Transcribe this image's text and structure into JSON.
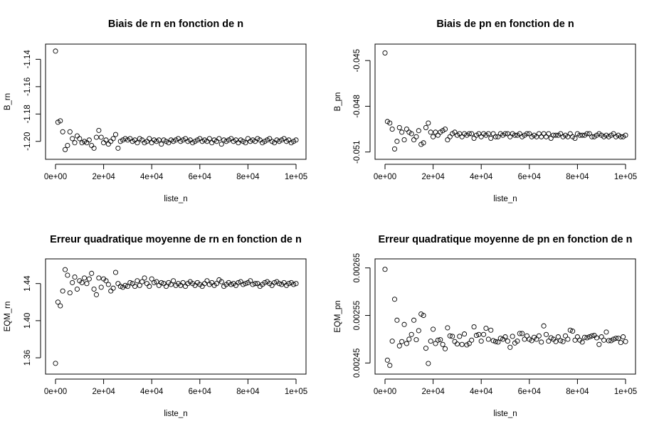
{
  "chart_data": [
    {
      "type": "scatter",
      "title": "Biais de rn en fonction de n",
      "xlabel": "liste_n",
      "ylabel": "B_rn",
      "xlim": [
        0,
        100000
      ],
      "ylim": [
        -1.21,
        -1.132
      ],
      "x_ticks": [
        "0e+00",
        "2e+04",
        "4e+04",
        "6e+04",
        "8e+04",
        "1e+05"
      ],
      "y_ticks": [
        "-1.20",
        "-1.18",
        "-1.16",
        "-1.14"
      ],
      "grid": false,
      "series": [
        {
          "x": [
            0,
            1000,
            2000,
            3000,
            4000,
            5000,
            6000,
            7000,
            8000,
            9000,
            10000,
            11000,
            12000,
            13000,
            14000,
            15000,
            16000,
            17000,
            18000,
            19000,
            20000,
            21000,
            22000,
            23000,
            24000,
            25000,
            26000,
            27000,
            28000,
            29000,
            30000,
            31000,
            32000,
            33000,
            34000,
            35000,
            36000,
            37000,
            38000,
            39000,
            40000,
            41000,
            42000,
            43000,
            44000,
            45000,
            46000,
            47000,
            48000,
            49000,
            50000,
            51000,
            52000,
            53000,
            54000,
            55000,
            56000,
            57000,
            58000,
            59000,
            60000,
            61000,
            62000,
            63000,
            64000,
            65000,
            66000,
            67000,
            68000,
            69000,
            70000,
            71000,
            72000,
            73000,
            74000,
            75000,
            76000,
            77000,
            78000,
            79000,
            80000,
            81000,
            82000,
            83000,
            84000,
            85000,
            86000,
            87000,
            88000,
            89000,
            90000,
            91000,
            92000,
            93000,
            94000,
            95000,
            96000,
            97000,
            98000,
            99000,
            100000
          ],
          "y": [
            -1.134,
            -1.186,
            -1.185,
            -1.193,
            -1.206,
            -1.203,
            -1.193,
            -1.198,
            -1.201,
            -1.196,
            -1.198,
            -1.201,
            -1.2,
            -1.201,
            -1.199,
            -1.203,
            -1.205,
            -1.197,
            -1.192,
            -1.197,
            -1.201,
            -1.199,
            -1.202,
            -1.2,
            -1.198,
            -1.195,
            -1.205,
            -1.2,
            -1.199,
            -1.198,
            -1.199,
            -1.198,
            -1.2,
            -1.199,
            -1.201,
            -1.198,
            -1.199,
            -1.201,
            -1.2,
            -1.198,
            -1.201,
            -1.199,
            -1.2,
            -1.199,
            -1.202,
            -1.199,
            -1.2,
            -1.201,
            -1.199,
            -1.2,
            -1.199,
            -1.198,
            -1.2,
            -1.199,
            -1.198,
            -1.2,
            -1.199,
            -1.201,
            -1.2,
            -1.199,
            -1.198,
            -1.2,
            -1.199,
            -1.2,
            -1.198,
            -1.201,
            -1.199,
            -1.2,
            -1.198,
            -1.202,
            -1.199,
            -1.2,
            -1.199,
            -1.198,
            -1.2,
            -1.199,
            -1.201,
            -1.199,
            -1.2,
            -1.201,
            -1.198,
            -1.2,
            -1.199,
            -1.2,
            -1.198,
            -1.199,
            -1.201,
            -1.2,
            -1.199,
            -1.198,
            -1.2,
            -1.201,
            -1.199,
            -1.2,
            -1.199,
            -1.198,
            -1.2,
            -1.199,
            -1.201,
            -1.2,
            -1.199
          ]
        }
      ]
    },
    {
      "type": "scatter",
      "title": "Biais de pn en fonction de n",
      "xlabel": "liste_n",
      "ylabel": "B_pn",
      "xlim": [
        0,
        100000
      ],
      "ylim": [
        -0.0512,
        -0.0442
      ],
      "x_ticks": [
        "0e+00",
        "2e+04",
        "4e+04",
        "6e+04",
        "8e+04",
        "1e+05"
      ],
      "y_ticks": [
        "-0.051",
        "-0.048",
        "-0.045"
      ],
      "grid": false,
      "series": [
        {
          "x": [
            0,
            1000,
            2000,
            3000,
            4000,
            5000,
            6000,
            7000,
            8000,
            9000,
            10000,
            11000,
            12000,
            13000,
            14000,
            15000,
            16000,
            17000,
            18000,
            19000,
            20000,
            21000,
            22000,
            23000,
            24000,
            25000,
            26000,
            27000,
            28000,
            29000,
            30000,
            31000,
            32000,
            33000,
            34000,
            35000,
            36000,
            37000,
            38000,
            39000,
            40000,
            41000,
            42000,
            43000,
            44000,
            45000,
            46000,
            47000,
            48000,
            49000,
            50000,
            51000,
            52000,
            53000,
            54000,
            55000,
            56000,
            57000,
            58000,
            59000,
            60000,
            61000,
            62000,
            63000,
            64000,
            65000,
            66000,
            67000,
            68000,
            69000,
            70000,
            71000,
            72000,
            73000,
            74000,
            75000,
            76000,
            77000,
            78000,
            79000,
            80000,
            81000,
            82000,
            83000,
            84000,
            85000,
            86000,
            87000,
            88000,
            89000,
            90000,
            91000,
            92000,
            93000,
            94000,
            95000,
            96000,
            97000,
            98000,
            99000,
            100000
          ],
          "y": [
            -0.0445,
            -0.049,
            -0.0491,
            -0.0495,
            -0.0508,
            -0.0503,
            -0.0494,
            -0.0497,
            -0.0502,
            -0.0495,
            -0.0497,
            -0.0498,
            -0.0502,
            -0.05,
            -0.0496,
            -0.0505,
            -0.0504,
            -0.0494,
            -0.0491,
            -0.0497,
            -0.05,
            -0.0497,
            -0.0499,
            -0.0497,
            -0.0496,
            -0.0495,
            -0.0502,
            -0.05,
            -0.0498,
            -0.0497,
            -0.0499,
            -0.0498,
            -0.05,
            -0.0498,
            -0.0499,
            -0.0498,
            -0.0498,
            -0.0501,
            -0.0499,
            -0.0498,
            -0.05,
            -0.0498,
            -0.0499,
            -0.0498,
            -0.0501,
            -0.0498,
            -0.05,
            -0.05,
            -0.0498,
            -0.0499,
            -0.0498,
            -0.0498,
            -0.05,
            -0.0498,
            -0.0499,
            -0.0499,
            -0.0498,
            -0.05,
            -0.0499,
            -0.0498,
            -0.0498,
            -0.05,
            -0.0499,
            -0.05,
            -0.0498,
            -0.05,
            -0.0498,
            -0.05,
            -0.0498,
            -0.0501,
            -0.0499,
            -0.0499,
            -0.0499,
            -0.0498,
            -0.05,
            -0.0499,
            -0.05,
            -0.0498,
            -0.05,
            -0.0501,
            -0.0498,
            -0.0499,
            -0.0499,
            -0.0499,
            -0.0498,
            -0.0498,
            -0.05,
            -0.05,
            -0.0499,
            -0.0498,
            -0.0499,
            -0.05,
            -0.0499,
            -0.05,
            -0.0499,
            -0.0498,
            -0.05,
            -0.0499,
            -0.05,
            -0.05,
            -0.0499
          ]
        }
      ]
    },
    {
      "type": "scatter",
      "title": "Erreur quadratique moyenne de rn en fonction de n",
      "xlabel": "liste_n",
      "ylabel": "EQM_rn",
      "xlim": [
        0,
        100000
      ],
      "ylim": [
        1.347,
        1.462
      ],
      "x_ticks": [
        "0e+00",
        "2e+04",
        "4e+04",
        "6e+04",
        "8e+04",
        "1e+05"
      ],
      "y_ticks": [
        "1.36",
        "1.40",
        "1.44"
      ],
      "grid": false,
      "series": [
        {
          "x": [
            0,
            1000,
            2000,
            3000,
            4000,
            5000,
            6000,
            7000,
            8000,
            9000,
            10000,
            11000,
            12000,
            13000,
            14000,
            15000,
            16000,
            17000,
            18000,
            19000,
            20000,
            21000,
            22000,
            23000,
            24000,
            25000,
            26000,
            27000,
            28000,
            29000,
            30000,
            31000,
            32000,
            33000,
            34000,
            35000,
            36000,
            37000,
            38000,
            39000,
            40000,
            41000,
            42000,
            43000,
            44000,
            45000,
            46000,
            47000,
            48000,
            49000,
            50000,
            51000,
            52000,
            53000,
            54000,
            55000,
            56000,
            57000,
            58000,
            59000,
            60000,
            61000,
            62000,
            63000,
            64000,
            65000,
            66000,
            67000,
            68000,
            69000,
            70000,
            71000,
            72000,
            73000,
            74000,
            75000,
            76000,
            77000,
            78000,
            79000,
            80000,
            81000,
            82000,
            83000,
            84000,
            85000,
            86000,
            87000,
            88000,
            89000,
            90000,
            91000,
            92000,
            93000,
            94000,
            95000,
            96000,
            97000,
            98000,
            99000,
            100000
          ],
          "y": [
            1.354,
            1.42,
            1.416,
            1.432,
            1.455,
            1.449,
            1.43,
            1.441,
            1.447,
            1.434,
            1.443,
            1.441,
            1.446,
            1.44,
            1.445,
            1.451,
            1.434,
            1.428,
            1.446,
            1.436,
            1.445,
            1.443,
            1.439,
            1.432,
            1.435,
            1.452,
            1.44,
            1.437,
            1.436,
            1.438,
            1.437,
            1.441,
            1.44,
            1.437,
            1.443,
            1.438,
            1.442,
            1.446,
            1.44,
            1.437,
            1.445,
            1.441,
            1.442,
            1.438,
            1.441,
            1.44,
            1.437,
            1.441,
            1.439,
            1.443,
            1.438,
            1.44,
            1.438,
            1.441,
            1.437,
            1.44,
            1.442,
            1.44,
            1.438,
            1.441,
            1.439,
            1.437,
            1.44,
            1.443,
            1.439,
            1.441,
            1.438,
            1.44,
            1.444,
            1.442,
            1.437,
            1.439,
            1.441,
            1.439,
            1.44,
            1.438,
            1.441,
            1.442,
            1.439,
            1.44,
            1.441,
            1.443,
            1.439,
            1.44,
            1.44,
            1.437,
            1.439,
            1.441,
            1.442,
            1.44,
            1.438,
            1.441,
            1.442,
            1.44,
            1.439,
            1.441,
            1.438,
            1.44,
            1.441,
            1.439,
            1.44
          ]
        }
      ]
    },
    {
      "type": "scatter",
      "title": "Erreur quadratique moyenne de pn en fonction de n",
      "xlabel": "liste_n",
      "ylabel": "EQM_pn",
      "xlim": [
        0,
        100000
      ],
      "ylim": [
        0.0024356,
        0.00266
      ],
      "x_ticks": [
        "0e+00",
        "2e+04",
        "4e+04",
        "6e+04",
        "8e+04",
        "1e+05"
      ],
      "y_ticks": [
        "0.00245",
        "0.00255",
        "0.00265"
      ],
      "grid": false,
      "series": [
        {
          "x": [
            0,
            1000,
            2000,
            3000,
            4000,
            5000,
            6000,
            7000,
            8000,
            9000,
            10000,
            11000,
            12000,
            13000,
            14000,
            15000,
            16000,
            17000,
            18000,
            19000,
            20000,
            21000,
            22000,
            23000,
            24000,
            25000,
            26000,
            27000,
            28000,
            29000,
            30000,
            31000,
            32000,
            33000,
            34000,
            35000,
            36000,
            37000,
            38000,
            39000,
            40000,
            41000,
            42000,
            43000,
            44000,
            45000,
            46000,
            47000,
            48000,
            49000,
            50000,
            51000,
            52000,
            53000,
            54000,
            55000,
            56000,
            57000,
            58000,
            59000,
            60000,
            61000,
            62000,
            63000,
            64000,
            65000,
            66000,
            67000,
            68000,
            69000,
            70000,
            71000,
            72000,
            73000,
            74000,
            75000,
            76000,
            77000,
            78000,
            79000,
            80000,
            81000,
            82000,
            83000,
            84000,
            85000,
            86000,
            87000,
            88000,
            89000,
            90000,
            91000,
            92000,
            93000,
            94000,
            95000,
            96000,
            97000,
            98000,
            99000,
            100000
          ],
          "y": [
            0.002647,
            0.002456,
            0.002445,
            0.002496,
            0.002584,
            0.00254,
            0.002486,
            0.002495,
            0.002531,
            0.002491,
            0.0025,
            0.00251,
            0.00254,
            0.002499,
            0.002518,
            0.002553,
            0.00255,
            0.002481,
            0.002449,
            0.002496,
            0.002521,
            0.002491,
            0.002498,
            0.002499,
            0.002489,
            0.00248,
            0.002524,
            0.002507,
            0.002506,
            0.002495,
            0.00249,
            0.002506,
            0.002489,
            0.002511,
            0.002488,
            0.002491,
            0.002498,
            0.002526,
            0.002508,
            0.00251,
            0.002496,
            0.00251,
            0.002523,
            0.0025,
            0.002519,
            0.002497,
            0.002495,
            0.002494,
            0.002502,
            0.0025,
            0.002505,
            0.002496,
            0.002483,
            0.002506,
            0.002492,
            0.002496,
            0.002512,
            0.002512,
            0.0025,
            0.002507,
            0.0025,
            0.002497,
            0.002504,
            0.0025,
            0.002507,
            0.002494,
            0.002528,
            0.00251,
            0.002496,
            0.002503,
            0.0025,
            0.002495,
            0.002505,
            0.002497,
            0.002495,
            0.002507,
            0.0025,
            0.002519,
            0.002517,
            0.002498,
            0.002505,
            0.002498,
            0.002494,
            0.002504,
            0.002503,
            0.002505,
            0.002507,
            0.002508,
            0.002503,
            0.002489,
            0.002505,
            0.002498,
            0.002515,
            0.002497,
            0.002497,
            0.0025,
            0.002502,
            0.002502,
            0.002493,
            0.002505,
            0.002495
          ]
        }
      ]
    }
  ]
}
